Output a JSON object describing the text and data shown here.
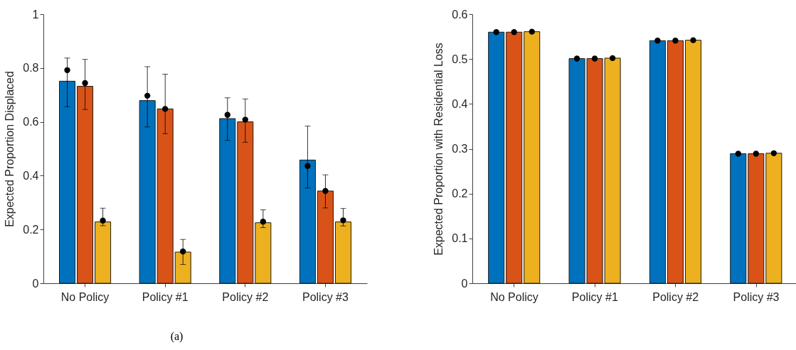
{
  "chart_data": [
    {
      "type": "bar",
      "categories": [
        "No Policy",
        "Policy #1",
        "Policy #2",
        "Policy #3"
      ],
      "ylabel": "Expected Proportion Displaced",
      "ylim": [
        0,
        1
      ],
      "yticks": [
        0,
        0.2,
        0.4,
        0.6,
        0.8,
        1
      ],
      "annotations": [
        "(a)"
      ],
      "series": [
        {
          "color": "#0072bd",
          "values": [
            0.751,
            0.679,
            0.612,
            0.458
          ]
        },
        {
          "color": "#d95319",
          "values": [
            0.732,
            0.648,
            0.6,
            0.343
          ]
        },
        {
          "color": "#edb120",
          "values": [
            0.228,
            0.116,
            0.225,
            0.228
          ]
        },
        {
          "type": "scatter",
          "color": "#000000",
          "x": [
            "No Policy",
            "Policy #1",
            "Policy #2",
            "Policy #3"
          ],
          "values": [
            0.792,
            0.697,
            0.626,
            0.436
          ],
          "errors": [
            [
              0.656,
              0.837
            ],
            [
              0.581,
              0.805
            ],
            [
              0.531,
              0.689
            ],
            [
              0.354,
              0.584
            ]
          ]
        },
        {
          "type": "scatter",
          "color": "#000000",
          "x": [
            "No Policy",
            "Policy #1",
            "Policy #2",
            "Policy #3"
          ],
          "values": [
            0.744,
            0.648,
            0.608,
            0.343
          ],
          "errors": [
            [
              0.646,
              0.832
            ],
            [
              0.556,
              0.777
            ],
            [
              0.524,
              0.685
            ],
            [
              0.28,
              0.403
            ]
          ]
        },
        {
          "type": "scatter",
          "color": "#000000",
          "x": [
            "No Policy",
            "Policy #1",
            "Policy #2",
            "Policy #3"
          ],
          "values": [
            0.233,
            0.118,
            0.229,
            0.234
          ],
          "errors": [
            [
              0.214,
              0.279
            ],
            [
              0.07,
              0.163
            ],
            [
              0.207,
              0.273
            ],
            [
              0.213,
              0.278
            ]
          ]
        }
      ]
    },
    {
      "type": "bar",
      "categories": [
        "No Policy",
        "Policy #1",
        "Policy #2",
        "Policy #3"
      ],
      "ylabel": "Expected Proportion with Residential Loss",
      "ylim": [
        0,
        0.6
      ],
      "yticks": [
        0,
        0.1,
        0.2,
        0.3,
        0.4,
        0.5,
        0.6
      ],
      "series": [
        {
          "color": "#0072bd",
          "values": [
            0.56,
            0.501,
            0.541,
            0.289
          ]
        },
        {
          "color": "#d95319",
          "values": [
            0.56,
            0.501,
            0.541,
            0.289
          ]
        },
        {
          "color": "#edb120",
          "values": [
            0.561,
            0.502,
            0.542,
            0.29
          ]
        },
        {
          "type": "scatter",
          "color": "#000000",
          "x": [
            "No Policy",
            "Policy #1",
            "Policy #2",
            "Policy #3"
          ],
          "values": [
            0.56,
            0.501,
            0.541,
            0.289
          ]
        },
        {
          "type": "scatter",
          "color": "#000000",
          "x": [
            "No Policy",
            "Policy #1",
            "Policy #2",
            "Policy #3"
          ],
          "values": [
            0.56,
            0.501,
            0.541,
            0.289
          ]
        },
        {
          "type": "scatter",
          "color": "#000000",
          "x": [
            "No Policy",
            "Policy #1",
            "Policy #2",
            "Policy #3"
          ],
          "values": [
            0.561,
            0.502,
            0.542,
            0.29
          ]
        }
      ]
    }
  ]
}
